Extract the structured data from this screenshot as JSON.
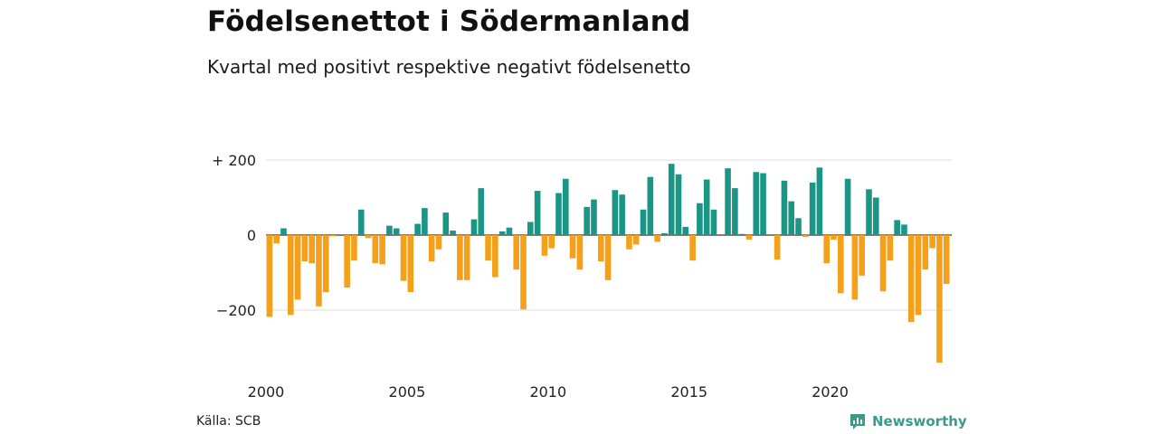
{
  "title": "Födelsenettot i Södermanland",
  "subtitle": "Kvartal med positivt respektive negativt födelsenetto",
  "source": "Källa: SCB",
  "brand": "Newsworthy",
  "colors": {
    "positive": "#1b9585",
    "negative": "#f5a01a",
    "grid": "#dddddd",
    "axis": "#333333"
  },
  "chart_data": {
    "type": "bar",
    "x_start": 2000,
    "x_step": "quarter",
    "xticks": [
      2000,
      2005,
      2010,
      2015,
      2020
    ],
    "xtick_labels": [
      "2000",
      "2005",
      "2010",
      "2015",
      "2020"
    ],
    "yticks": [
      200,
      0,
      -200
    ],
    "ytick_labels": [
      "+ 200",
      "0",
      "−200"
    ],
    "ylim": [
      -340,
      200
    ],
    "values": [
      -218,
      -22,
      18,
      -213,
      -172,
      -70,
      -75,
      -190,
      -152,
      -3,
      0,
      -140,
      -68,
      68,
      -8,
      -75,
      -78,
      25,
      18,
      -122,
      -152,
      30,
      72,
      -70,
      -38,
      60,
      12,
      -120,
      -120,
      42,
      125,
      -68,
      -112,
      10,
      20,
      -92,
      -198,
      35,
      118,
      -55,
      -35,
      112,
      150,
      -62,
      -92,
      75,
      95,
      -70,
      -120,
      120,
      108,
      -38,
      -25,
      68,
      155,
      -18,
      5,
      190,
      162,
      22,
      -68,
      85,
      148,
      68,
      0,
      178,
      125,
      3,
      -12,
      168,
      165,
      0,
      -65,
      145,
      90,
      45,
      -5,
      140,
      180,
      -75,
      -12,
      -155,
      150,
      -172,
      -108,
      122,
      100,
      -150,
      -68,
      40,
      28,
      -232,
      -213,
      -92,
      -35,
      -340,
      -130
    ]
  }
}
